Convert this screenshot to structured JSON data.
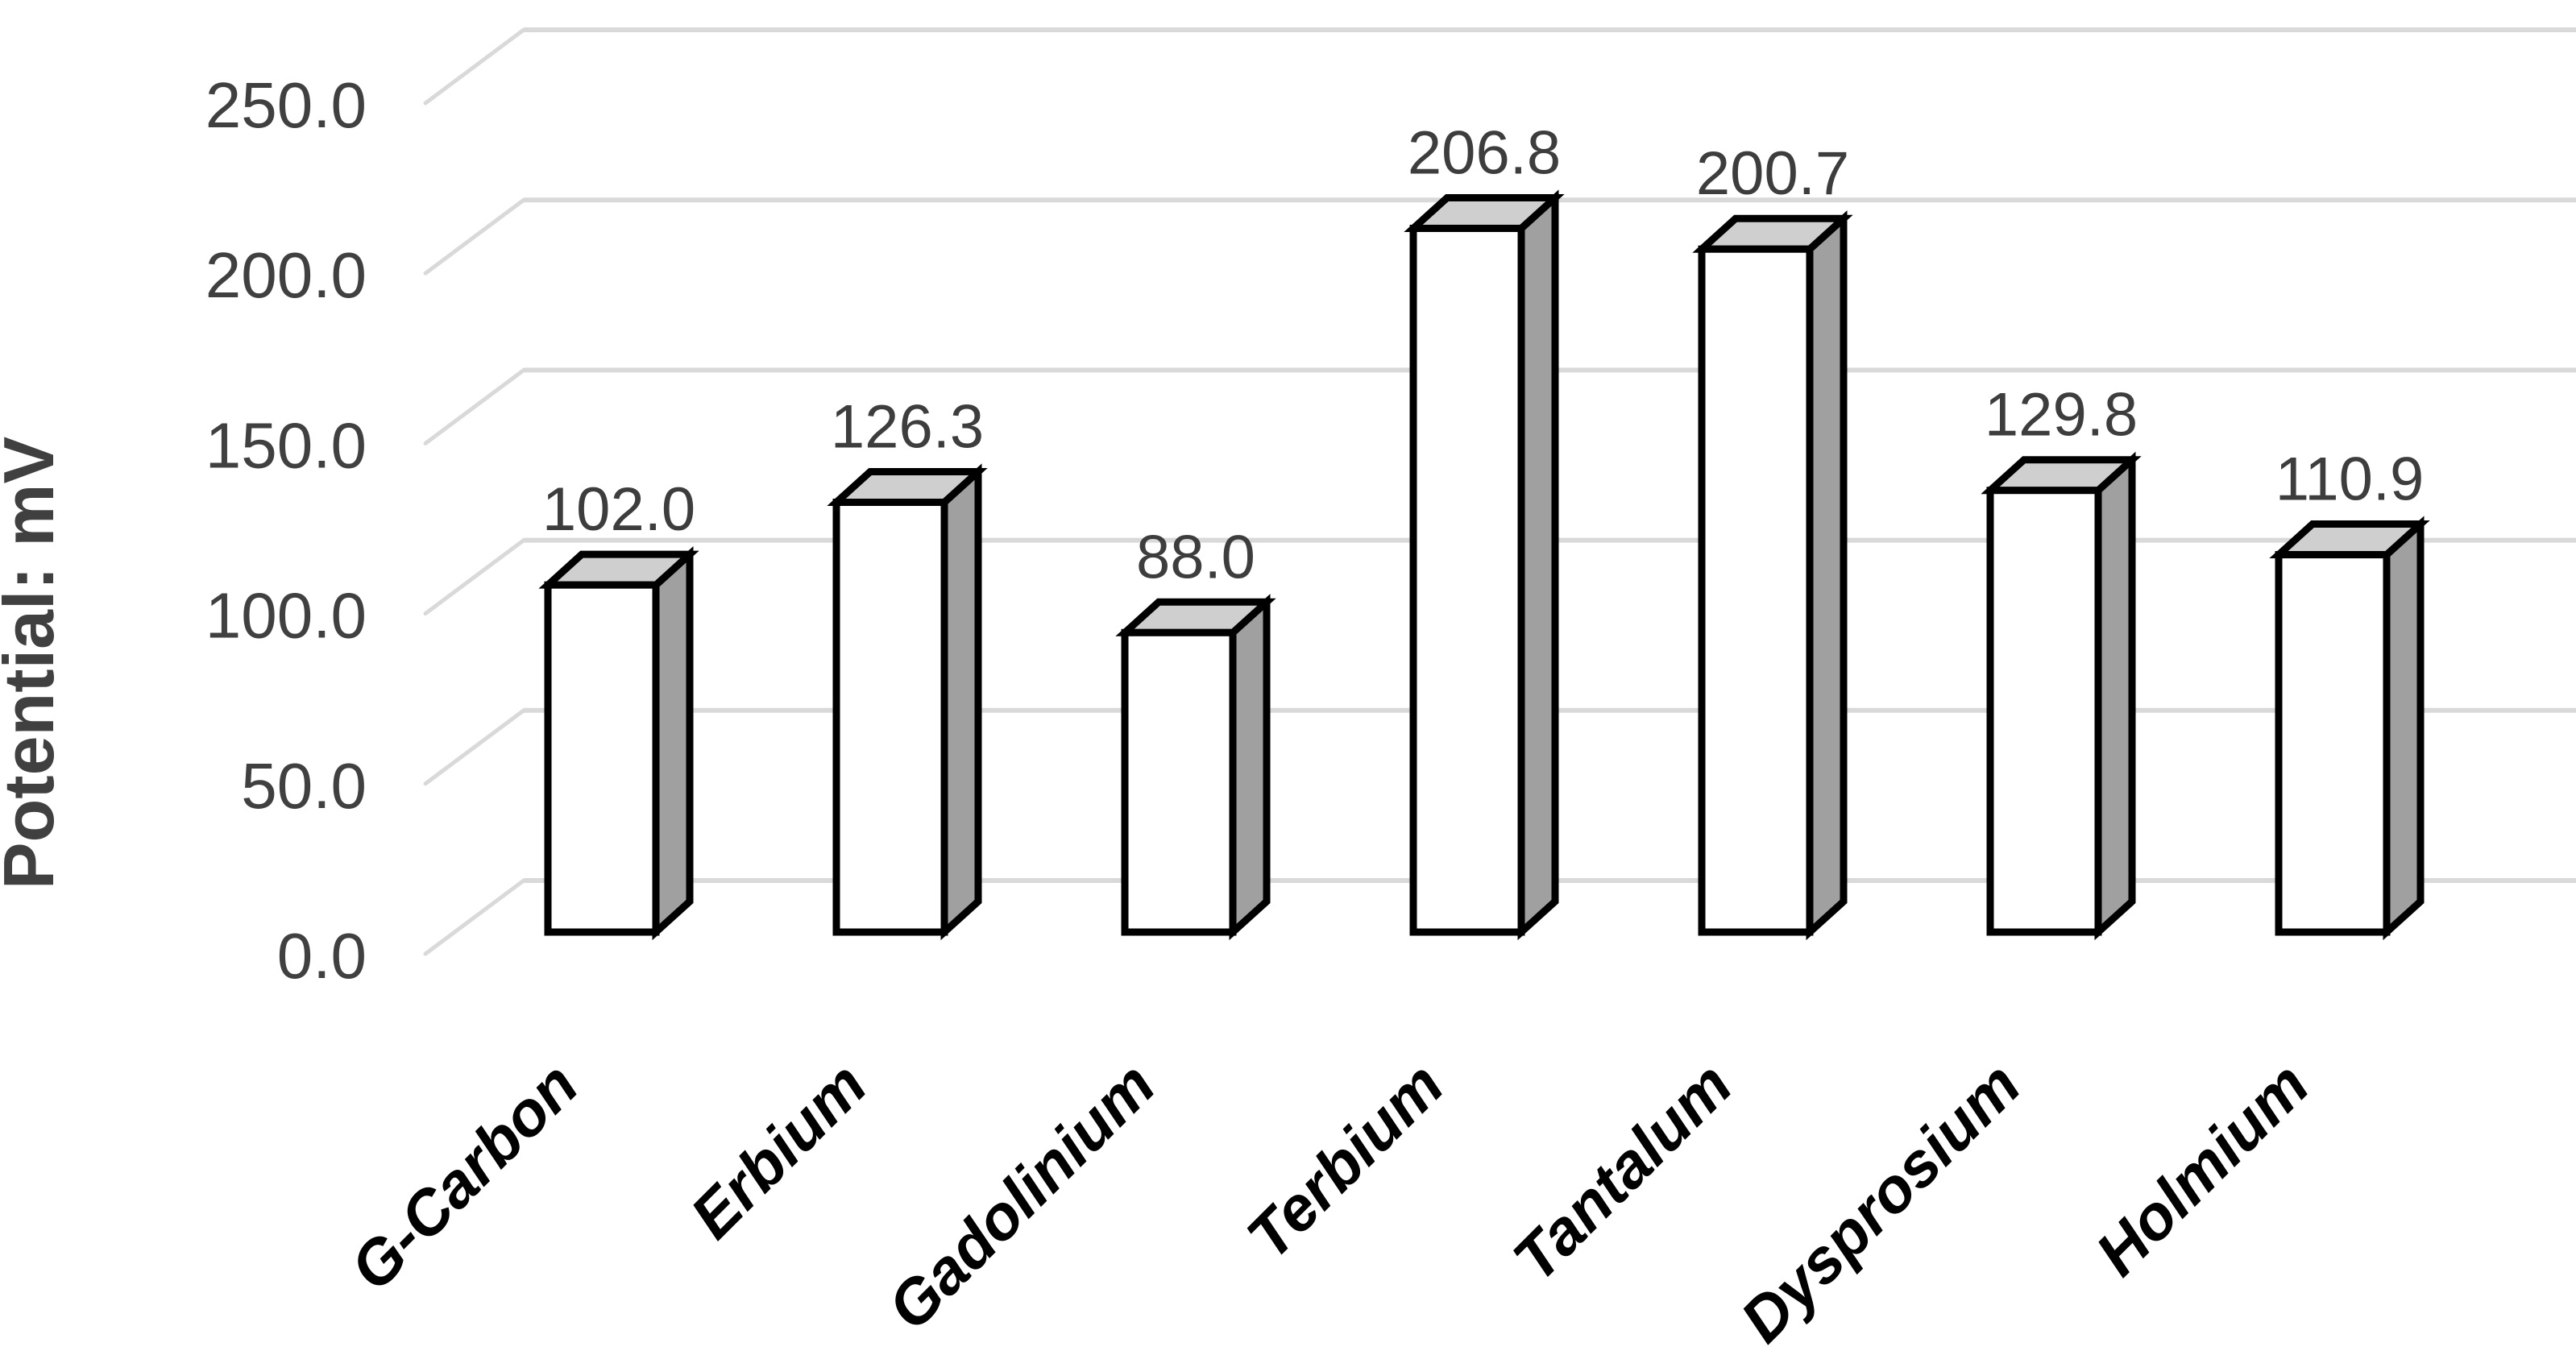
{
  "chart_data": {
    "type": "bar",
    "variant": "3d-column",
    "title": "",
    "xlabel": "",
    "ylabel": "Potential: mV",
    "categories": [
      "G-Carbon",
      "Erbium",
      "Gadolinium",
      "Terbium",
      "Tantalum",
      "Dysprosium",
      "Holmium"
    ],
    "values": [
      102.0,
      126.3,
      88.0,
      206.8,
      200.7,
      129.8,
      110.9
    ],
    "value_labels": [
      "102.0",
      "126.3",
      "88.0",
      "206.8",
      "200.7",
      "129.8",
      "110.9"
    ],
    "y_ticks": [
      0,
      50,
      100,
      150,
      200,
      250
    ],
    "y_tick_labels": [
      "0.0",
      "50.0",
      "100.0",
      "150.0",
      "200.0",
      "250.0"
    ],
    "ylim": [
      0,
      250
    ],
    "grid": true,
    "legend": null,
    "colors": {
      "background": "#ffffff",
      "bar_front": "#ffffff",
      "bar_top": "#cfcfcf",
      "bar_side": "#a0a0a0",
      "bar_outline": "#000000",
      "gridline": "#d9d9d9",
      "tick_text": "#404040",
      "value_text": "#3d3d3d",
      "category_text": "#000000",
      "axis_title_text": "#404040"
    }
  }
}
